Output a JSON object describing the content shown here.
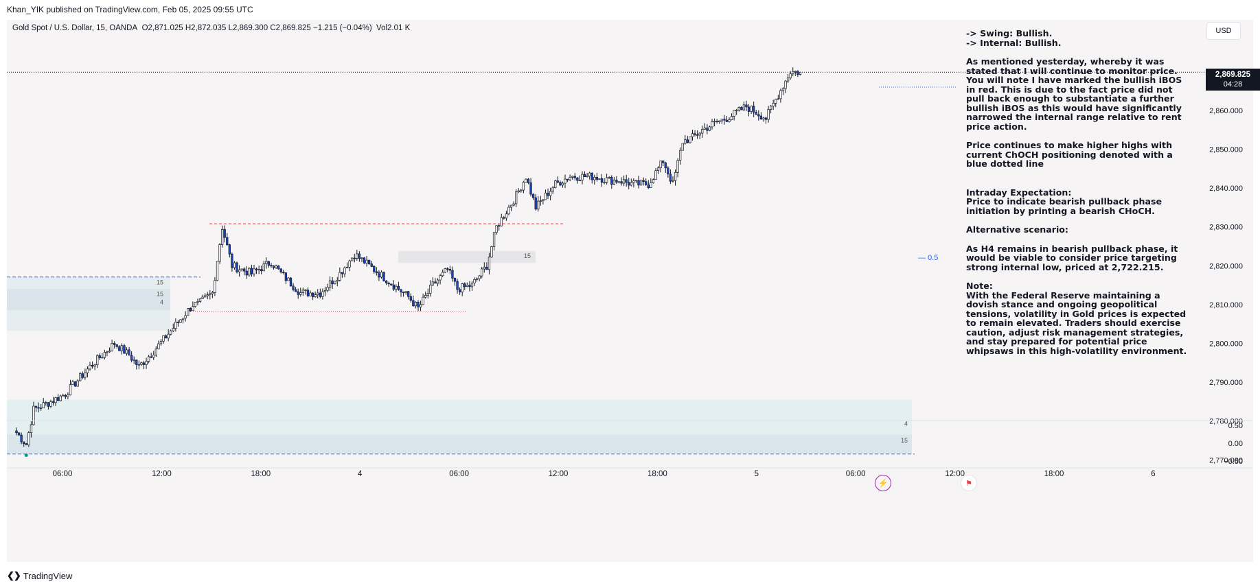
{
  "header": {
    "published": "Khan_YIK published on TradingView.com, Feb 05, 2025 09:55 UTC"
  },
  "legend": {
    "symbol": "Gold Spot / U.S. Dollar, 15, OANDA",
    "open": "O2,871.025",
    "high": "H2,872.035",
    "low": "L2,869.300",
    "close": "C2,869.825",
    "change": "−1.215 (−0.04%)",
    "volume": "Vol2.01 K"
  },
  "currency": "USD",
  "last_price": {
    "value": "2,869.825",
    "countdown": "04:28"
  },
  "notes": {
    "swing": "-> Swing:  Bullish.",
    "internal": "-> Internal:  Bullish.",
    "p1": "As mentioned yesterday, whereby it was stated that I will continue to monitor price.  You will note I have marked the bullish iBOS in red.  This is due to the fact price did not pull back enough to substantiate a further bullish iBOS as this would have significantly narrowed the internal range relative to rent price action.",
    "p2": "Price continues to make higher highs with current ChOCH positioning denoted with a blue dotted line",
    "intraday_title": "Intraday Expectation:",
    "intraday_text": "Price to indicate bearish pullback phase initiation by printing a bearish CHoCH.",
    "alt_title": "Alternative scenario:",
    "alt_text": "As H4 remains in bearish pullback phase, it would be viable to consider price targeting strong internal low, priced at 2,722.215.",
    "note_title": "Note:",
    "note_text": "With the Federal Reserve maintaining a dovish stance and ongoing geopolitical tensions, volatility in Gold prices is expected to remain elevated. Traders should exercise caution, adjust risk management strategies, and stay prepared for potential price whipsaws in this high-volatility environment."
  },
  "annotations": {
    "fib_level": "0.5",
    "zone_labels": [
      "15",
      "15",
      "4",
      "15",
      "4",
      "15"
    ]
  },
  "footer": {
    "brand": "TradingView"
  },
  "colors": {
    "bull": "#ffffff",
    "bear": "#1848cc",
    "wick": "#131722",
    "bos_red": "#f23645",
    "choch_blue": "#2962ff",
    "zone": "#dfe9ee"
  },
  "chart_data": {
    "type": "candlestick",
    "timeframe": "15",
    "y_range": [
      2764,
      2883
    ],
    "y_ticks": [
      2770,
      2780,
      2790,
      2800,
      2810,
      2820,
      2830,
      2840,
      2850,
      2860
    ],
    "y_tick_labels": [
      "2,770.000",
      "2,780.000",
      "2,790.000",
      "2,800.000",
      "2,810.000",
      "2,820.000",
      "2,830.000",
      "2,840.000",
      "2,850.000",
      "2,860.000"
    ],
    "x_tick_labels": [
      "06:00",
      "12:00",
      "18:00",
      "4",
      "06:00",
      "12:00",
      "18:00",
      "5",
      "06:00",
      "12:00",
      "18:00",
      "6"
    ],
    "indicator": {
      "y_ticks": [
        0.5,
        0.0,
        -0.5
      ],
      "y_tick_labels": [
        "0.50",
        "0.00",
        "−0.50"
      ]
    },
    "levels": [
      {
        "name": "bullish-ibos",
        "price": 2830.8,
        "style": "red-dashed"
      },
      {
        "name": "internal-low",
        "price": 2808.2,
        "style": "red-dotted"
      },
      {
        "name": "choch",
        "price": 2866.0,
        "style": "blue-dotted"
      },
      {
        "name": "upper-zone-top",
        "price": 2817.1,
        "style": "blue-dashed"
      },
      {
        "name": "lower-zone-bottom",
        "price": 2771.5,
        "style": "blue-dashed"
      }
    ],
    "waypoints": [
      [
        0,
        2777
      ],
      [
        4,
        2774
      ],
      [
        7,
        2783
      ],
      [
        14,
        2785
      ],
      [
        20,
        2787
      ],
      [
        30,
        2794
      ],
      [
        40,
        2800
      ],
      [
        46,
        2797
      ],
      [
        50,
        2794
      ],
      [
        56,
        2798
      ],
      [
        64,
        2804
      ],
      [
        72,
        2810
      ],
      [
        74,
        2810
      ],
      [
        80,
        2813
      ],
      [
        84,
        2830
      ],
      [
        88,
        2820
      ],
      [
        96,
        2818
      ],
      [
        104,
        2821
      ],
      [
        108,
        2818
      ],
      [
        116,
        2813
      ],
      [
        124,
        2813
      ],
      [
        132,
        2818
      ],
      [
        138,
        2823
      ],
      [
        146,
        2819
      ],
      [
        154,
        2815
      ],
      [
        160,
        2812
      ],
      [
        164,
        2809
      ],
      [
        170,
        2815
      ],
      [
        176,
        2819
      ],
      [
        180,
        2814
      ],
      [
        186,
        2815
      ],
      [
        192,
        2820
      ],
      [
        196,
        2830
      ],
      [
        204,
        2838
      ],
      [
        208,
        2843
      ],
      [
        212,
        2835
      ],
      [
        220,
        2841
      ],
      [
        226,
        2843
      ],
      [
        236,
        2843
      ],
      [
        242,
        2842
      ],
      [
        246,
        2842
      ],
      [
        252,
        2841
      ],
      [
        258,
        2841
      ],
      [
        264,
        2847
      ],
      [
        268,
        2841
      ],
      [
        272,
        2852
      ],
      [
        276,
        2853
      ],
      [
        280,
        2855
      ],
      [
        286,
        2857
      ],
      [
        290,
        2858
      ],
      [
        298,
        2861
      ],
      [
        306,
        2858
      ],
      [
        316,
        2870
      ],
      [
        320,
        2869.825
      ]
    ]
  }
}
